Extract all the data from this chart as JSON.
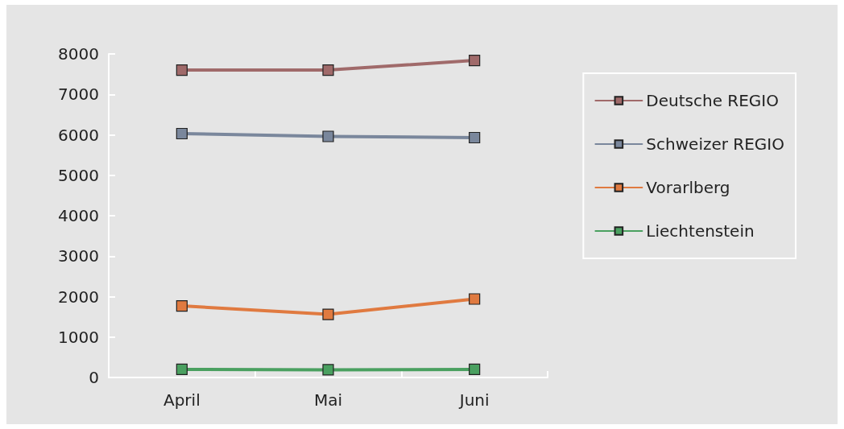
{
  "chart_data": {
    "type": "line",
    "categories": [
      "April",
      "Mai",
      "Juni"
    ],
    "series": [
      {
        "name": "Deutsche REGIO",
        "color": "#a06a6a",
        "values": [
          7600,
          7600,
          7840
        ]
      },
      {
        "name": "Schweizer REGIO",
        "color": "#7a879c",
        "values": [
          6030,
          5960,
          5930
        ]
      },
      {
        "name": "Vorarlberg",
        "color": "#e07a40",
        "values": [
          1770,
          1560,
          1940
        ]
      },
      {
        "name": "Liechtenstein",
        "color": "#4aa060",
        "values": [
          200,
          190,
          200
        ]
      }
    ],
    "ylim": [
      0,
      8000
    ],
    "yticks": [
      0,
      1000,
      2000,
      3000,
      4000,
      5000,
      6000,
      7000,
      8000
    ],
    "grid": false,
    "legend": "right",
    "marker": "square",
    "line_style": "solid"
  }
}
